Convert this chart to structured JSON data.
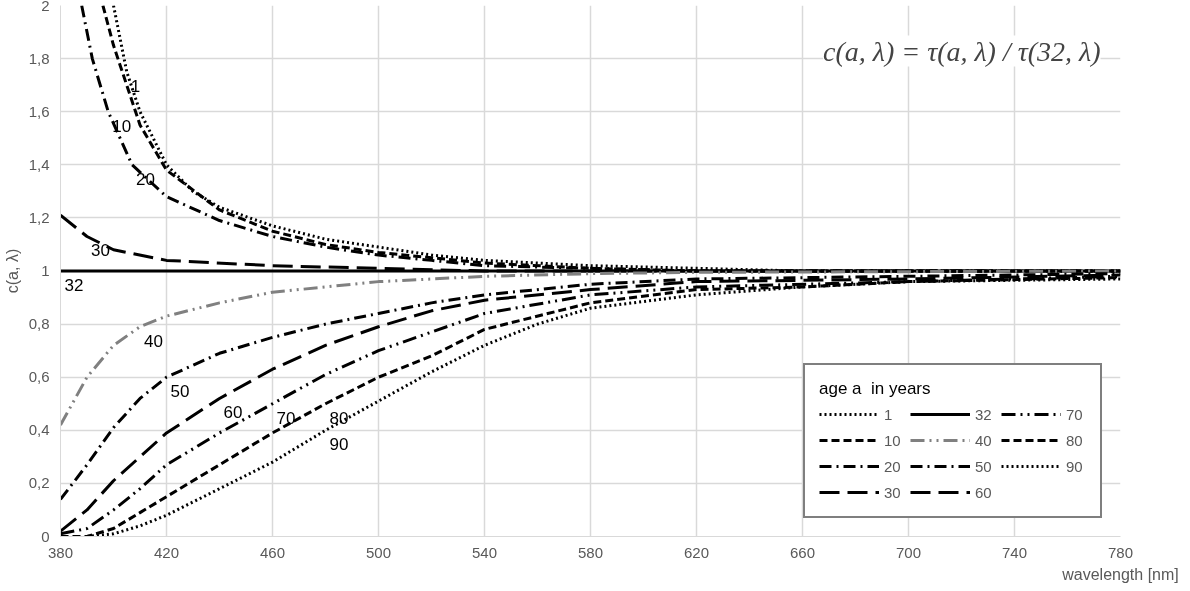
{
  "chart_data": {
    "type": "line",
    "xlabel": "wavelength [nm]",
    "ylabel": "c(a, λ)",
    "legend_title": "age a  in years",
    "xlim": [
      380,
      780
    ],
    "ylim": [
      0,
      2
    ],
    "xticks": [
      380,
      420,
      460,
      500,
      540,
      580,
      620,
      660,
      700,
      740,
      780
    ],
    "yticks": [
      0,
      {
        "value": 0.2,
        "label": "0,2"
      },
      {
        "value": 0.4,
        "label": "0,4"
      },
      {
        "value": 0.6,
        "label": "0,6"
      },
      {
        "value": 0.8,
        "label": "0,8"
      },
      1,
      {
        "value": 1.2,
        "label": "1,2"
      },
      {
        "value": 1.4,
        "label": "1,4"
      },
      {
        "value": 1.6,
        "label": "1,6"
      },
      {
        "value": 1.8,
        "label": "1,8"
      },
      2
    ],
    "grid": true,
    "legend": "bottom right",
    "series": [
      {
        "name": "1",
        "color": "#000000",
        "line_style": "dotted",
        "x": [
          400,
          405,
          410,
          420,
          430,
          440,
          460,
          480,
          500,
          520,
          540,
          560,
          580,
          620,
          660,
          700,
          780
        ],
        "values": [
          2.0,
          1.75,
          1.6,
          1.4,
          1.3,
          1.24,
          1.17,
          1.12,
          1.09,
          1.06,
          1.04,
          1.03,
          1.02,
          1.01,
          1.0,
          1.0,
          1.0
        ]
      },
      {
        "name": "10",
        "color": "#000000",
        "line_style": "dashed",
        "x": [
          396,
          400,
          410,
          420,
          440,
          460,
          480,
          500,
          520,
          540,
          580,
          620,
          780
        ],
        "values": [
          2.0,
          1.85,
          1.55,
          1.38,
          1.23,
          1.15,
          1.1,
          1.07,
          1.05,
          1.03,
          1.01,
          1.0,
          1.0
        ]
      },
      {
        "name": "20",
        "color": "#000000",
        "line_style": "dashdot",
        "x": [
          388,
          392,
          398,
          407,
          420,
          440,
          460,
          480,
          500,
          520,
          540,
          580,
          620,
          780
        ],
        "values": [
          2.0,
          1.8,
          1.6,
          1.4,
          1.28,
          1.19,
          1.13,
          1.09,
          1.06,
          1.04,
          1.02,
          1.01,
          1.0,
          1.0
        ]
      },
      {
        "name": "30",
        "color": "#000000",
        "line_style": "longdash",
        "x": [
          380,
          390,
          400,
          420,
          460,
          500,
          540,
          780
        ],
        "values": [
          1.21,
          1.13,
          1.08,
          1.04,
          1.02,
          1.01,
          1.0,
          1.0
        ]
      },
      {
        "name": "32",
        "color": "#000000",
        "line_style": "solid",
        "x": [
          380,
          780
        ],
        "values": [
          1.0,
          1.0
        ]
      },
      {
        "name": "40",
        "color": "#808080",
        "line_style": "dashdotdot",
        "x": [
          380,
          390,
          400,
          410,
          420,
          440,
          460,
          480,
          500,
          520,
          540,
          580,
          620,
          780
        ],
        "values": [
          0.42,
          0.6,
          0.72,
          0.79,
          0.83,
          0.88,
          0.92,
          0.94,
          0.96,
          0.97,
          0.98,
          0.99,
          0.995,
          1.0
        ]
      },
      {
        "name": "50",
        "color": "#000000",
        "line_style": "dashdot",
        "x": [
          380,
          390,
          400,
          410,
          420,
          440,
          460,
          480,
          500,
          520,
          540,
          580,
          620,
          700,
          780
        ],
        "values": [
          0.14,
          0.27,
          0.41,
          0.52,
          0.6,
          0.69,
          0.75,
          0.8,
          0.84,
          0.88,
          0.91,
          0.95,
          0.97,
          0.98,
          0.99
        ]
      },
      {
        "name": "60",
        "color": "#000000",
        "line_style": "longdash",
        "x": [
          380,
          390,
          400,
          410,
          420,
          440,
          460,
          480,
          500,
          520,
          540,
          580,
          620,
          700,
          780
        ],
        "values": [
          0.02,
          0.1,
          0.21,
          0.3,
          0.39,
          0.52,
          0.63,
          0.72,
          0.79,
          0.85,
          0.89,
          0.93,
          0.96,
          0.97,
          0.985
        ]
      },
      {
        "name": "70",
        "color": "#000000",
        "line_style": "dashdotdot",
        "x": [
          380,
          390,
          400,
          410,
          420,
          440,
          460,
          480,
          500,
          520,
          540,
          580,
          620,
          700,
          780
        ],
        "values": [
          0.01,
          0.03,
          0.1,
          0.18,
          0.27,
          0.39,
          0.5,
          0.61,
          0.7,
          0.77,
          0.84,
          0.91,
          0.94,
          0.96,
          0.98
        ]
      },
      {
        "name": "80",
        "color": "#000000",
        "line_style": "dashed",
        "x": [
          380,
          390,
          400,
          410,
          420,
          440,
          460,
          480,
          500,
          520,
          540,
          580,
          620,
          660,
          700,
          780
        ],
        "values": [
          0.0,
          0.0,
          0.03,
          0.09,
          0.15,
          0.27,
          0.39,
          0.5,
          0.6,
          0.68,
          0.78,
          0.88,
          0.93,
          0.94,
          0.96,
          0.975
        ]
      },
      {
        "name": "90",
        "color": "#000000",
        "line_style": "dotted",
        "x": [
          390,
          400,
          410,
          420,
          440,
          460,
          480,
          500,
          520,
          540,
          560,
          580,
          620,
          660,
          700,
          780
        ],
        "values": [
          0.0,
          0.01,
          0.04,
          0.08,
          0.18,
          0.28,
          0.4,
          0.51,
          0.62,
          0.72,
          0.8,
          0.86,
          0.91,
          0.94,
          0.96,
          0.97
        ]
      }
    ],
    "annotations": [
      "c(a, λ) = τ(a, λ) / τ(32, λ)",
      {
        "text": "1",
        "x": 405,
        "y": 1.75
      },
      {
        "text": "10",
        "x": 398,
        "y": 1.6
      },
      {
        "text": "20",
        "x": 407,
        "y": 1.4
      },
      {
        "text": "30",
        "x": 390,
        "y": 1.13
      },
      {
        "text": "32",
        "x": 380,
        "y": 1.0
      },
      {
        "text": "40",
        "x": 410,
        "y": 0.79
      },
      {
        "text": "50",
        "x": 420,
        "y": 0.6
      },
      {
        "text": "60",
        "x": 440,
        "y": 0.52
      },
      {
        "text": "70",
        "x": 460,
        "y": 0.5
      },
      {
        "text": "80",
        "x": 480,
        "y": 0.5
      },
      {
        "text": "90",
        "x": 480,
        "y": 0.4
      }
    ]
  }
}
